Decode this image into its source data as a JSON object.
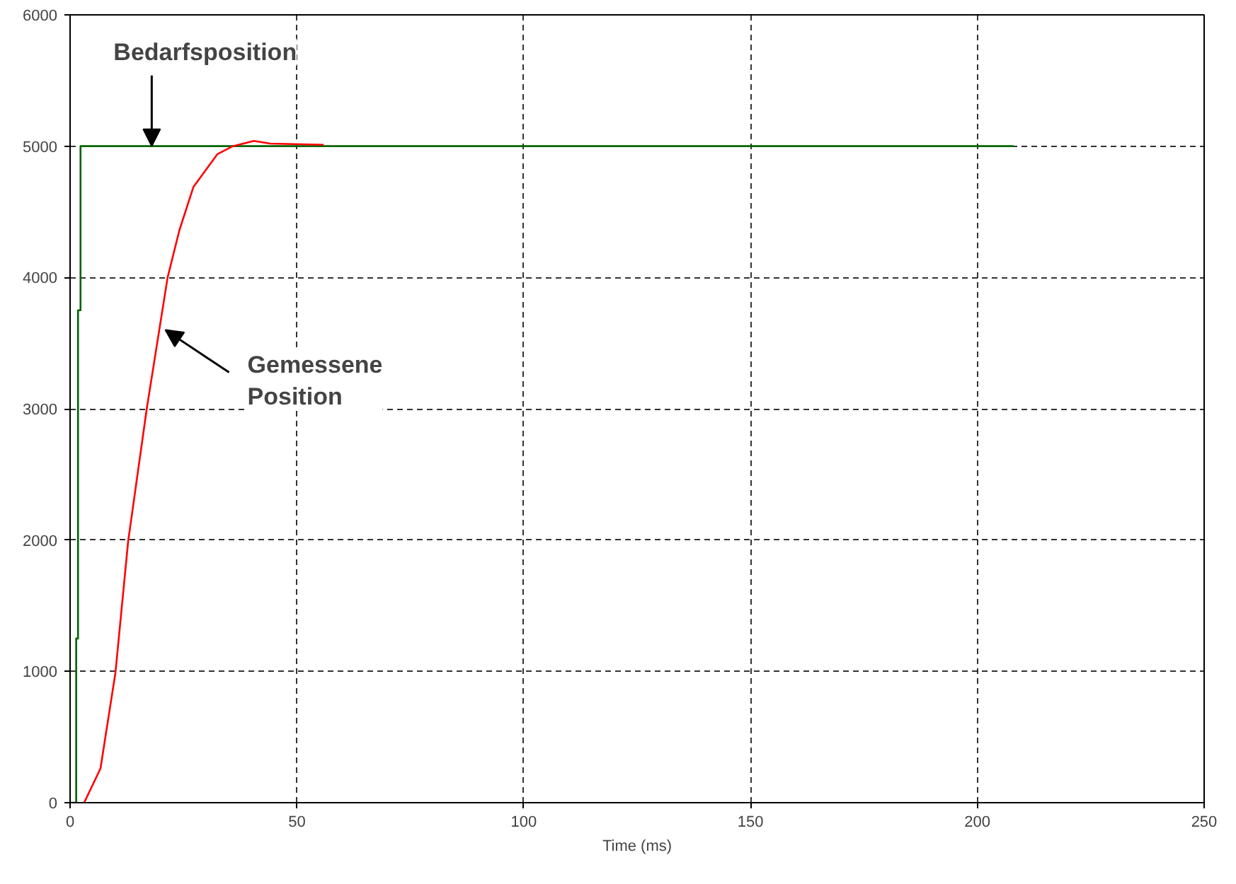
{
  "chart_data": {
    "type": "line",
    "xlabel": "Time (ms)",
    "xlim": [
      0,
      250
    ],
    "ylim": [
      0,
      6000
    ],
    "xticks": [
      0,
      50,
      100,
      150,
      200,
      250
    ],
    "yticks": [
      0,
      1000,
      2000,
      3000,
      4000,
      5000,
      6000
    ],
    "grid": true,
    "marker": "none",
    "line_style": "solid",
    "series": [
      {
        "color": "#006400",
        "x": [
          0,
          1.35,
          1.35,
          1.75,
          1.75,
          2.3,
          2.3,
          208
        ],
        "values": [
          0,
          0,
          1250,
          1250,
          3750,
          3750,
          5000,
          5000
        ]
      },
      {
        "color": "#ff0000",
        "x": [
          3.1,
          6.7,
          10.0,
          12.8,
          16.9,
          21.5,
          24.1,
          27.2,
          32.5,
          35.9,
          40.5,
          44.1,
          55.9
        ],
        "values": [
          0,
          260,
          990,
          1990,
          3000,
          4000,
          4360,
          4690,
          4940,
          5000,
          5040,
          5020,
          5010
        ]
      }
    ],
    "annotations": [
      {
        "text": "Bedarfsposition",
        "x": 18,
        "y": 5000
      },
      {
        "text": "Gemessene\nPosition",
        "x": 21,
        "y": 3600
      }
    ]
  }
}
